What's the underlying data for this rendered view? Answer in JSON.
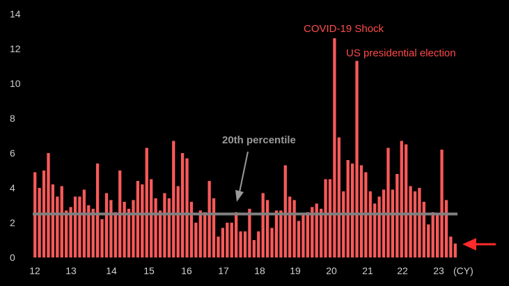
{
  "chart_data": {
    "type": "bar",
    "xlabel": "(CY)",
    "ylabel": "",
    "ylim": [
      0,
      14
    ],
    "yticks": [
      "0",
      "2",
      "4",
      "6",
      "8",
      "10",
      "12",
      "14"
    ],
    "xticks": [
      "12",
      "13",
      "14",
      "15",
      "16",
      "17",
      "18",
      "19",
      "20",
      "21",
      "22",
      "23"
    ],
    "reference_line": {
      "label": "20th percentile",
      "value": 2.5
    },
    "annotations": [
      {
        "text": "COVID-19 Shock",
        "near_index": 98
      },
      {
        "text": "US presidential election",
        "near_index": 104
      }
    ],
    "bar_color": "#ff5a5a",
    "line_color": "#808080",
    "arrow_color": "#ff2a2a",
    "values": [
      4.9,
      4.0,
      5.0,
      6.0,
      4.2,
      3.5,
      4.1,
      2.7,
      2.9,
      3.5,
      3.5,
      3.9,
      3.0,
      2.8,
      5.4,
      2.2,
      3.7,
      3.3,
      2.6,
      5.0,
      3.2,
      2.8,
      3.3,
      4.4,
      4.2,
      6.3,
      4.5,
      3.4,
      2.7,
      3.7,
      3.4,
      6.7,
      4.1,
      6.0,
      5.7,
      3.2,
      2.0,
      2.7,
      2.6,
      4.4,
      3.4,
      1.2,
      1.7,
      2.0,
      2.0,
      2.6,
      1.5,
      1.5,
      2.8,
      1.0,
      1.5,
      3.7,
      3.3,
      1.7,
      2.7,
      2.7,
      5.3,
      3.5,
      3.3,
      2.1,
      2.5,
      2.6,
      2.9,
      3.1,
      2.8,
      4.5,
      4.5,
      12.6,
      6.9,
      3.8,
      5.6,
      5.4,
      11.3,
      5.3,
      4.9,
      3.8,
      3.1,
      3.5,
      3.9,
      6.3,
      3.9,
      4.8,
      6.7,
      6.5,
      4.1,
      3.8,
      4.0,
      3.2,
      1.9,
      2.6,
      2.5,
      6.2,
      3.3,
      1.2,
      0.8
    ]
  }
}
